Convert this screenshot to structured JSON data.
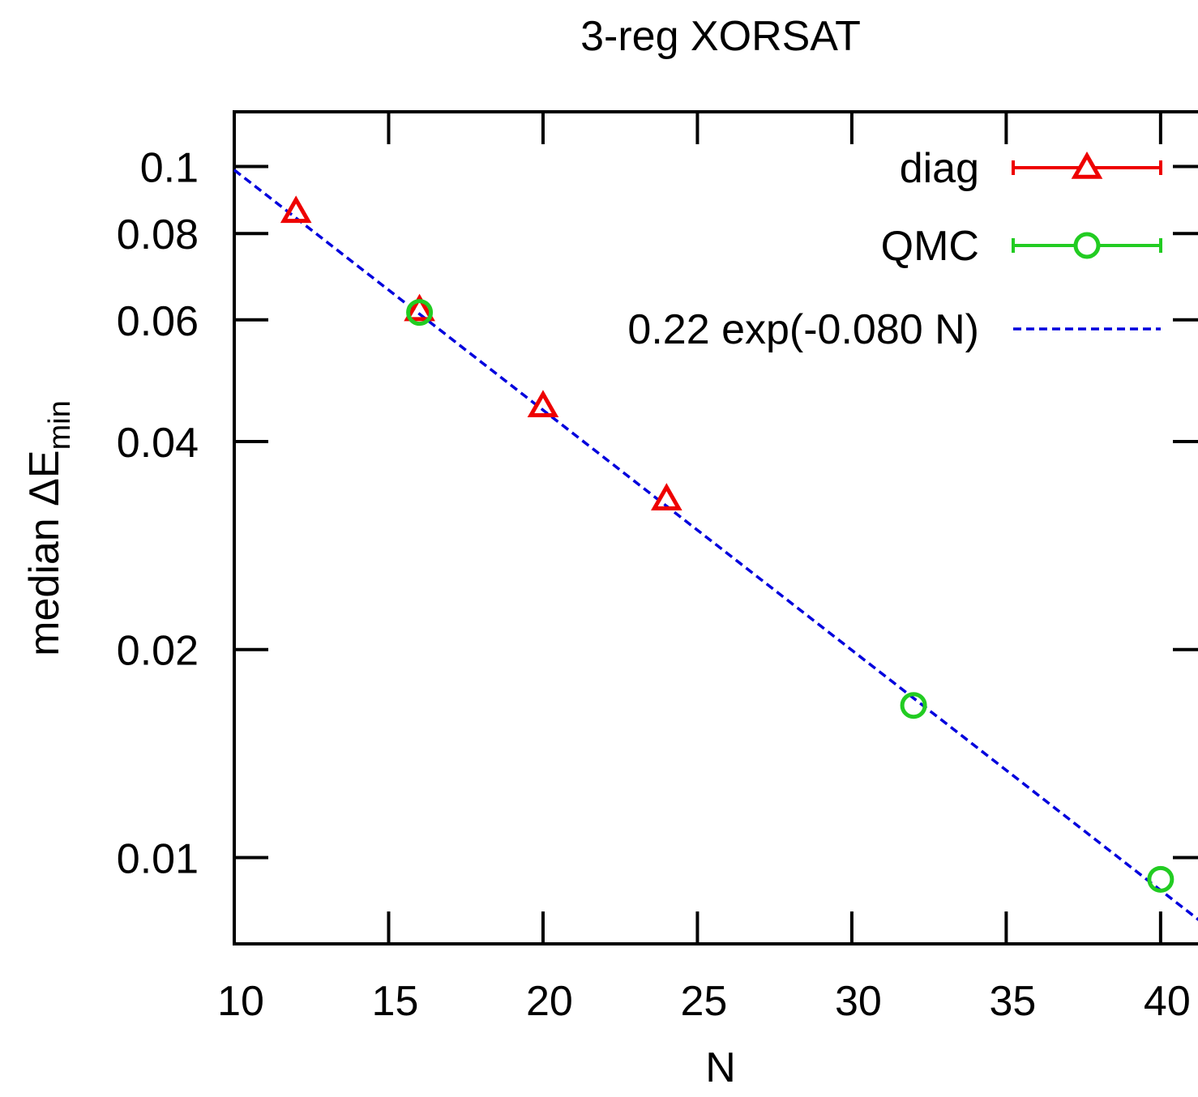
{
  "chart_data": {
    "type": "scatter",
    "title": "3-reg XORSAT",
    "xlabel": "N",
    "ylabel": {
      "main": "median ΔE",
      "subscript": "min"
    },
    "x_scale": "linear",
    "y_scale": "log",
    "xlim": [
      10,
      41.5
    ],
    "ylim": [
      0.0075,
      0.12
    ],
    "x_ticks": [
      10,
      15,
      20,
      25,
      30,
      35,
      40
    ],
    "x_tick_labels": [
      "10",
      "15",
      "20",
      "25",
      "30",
      "35",
      "40"
    ],
    "y_ticks": [
      0.01,
      0.02,
      0.04,
      0.06,
      0.08,
      0.1
    ],
    "y_tick_labels": [
      "0.01",
      "0.02",
      "0.04",
      "0.06",
      "0.08",
      "0.1"
    ],
    "grid": false,
    "legend_position": "top-right",
    "series": [
      {
        "name": "diag",
        "color": "#ee0000",
        "marker": "triangle",
        "points": [
          {
            "x": 12,
            "y": 0.086
          },
          {
            "x": 16,
            "y": 0.062
          },
          {
            "x": 20,
            "y": 0.045
          },
          {
            "x": 24,
            "y": 0.033
          }
        ]
      },
      {
        "name": "QMC",
        "color": "#22cc22",
        "marker": "circle",
        "points": [
          {
            "x": 16,
            "y": 0.0615
          },
          {
            "x": 32,
            "y": 0.0166
          },
          {
            "x": 40,
            "y": 0.0093
          }
        ]
      },
      {
        "name": "0.22 exp(-0.080 N)",
        "color": "#0000dd",
        "line": "dashed",
        "function": {
          "a": 0.22,
          "b": -0.08
        }
      }
    ]
  }
}
